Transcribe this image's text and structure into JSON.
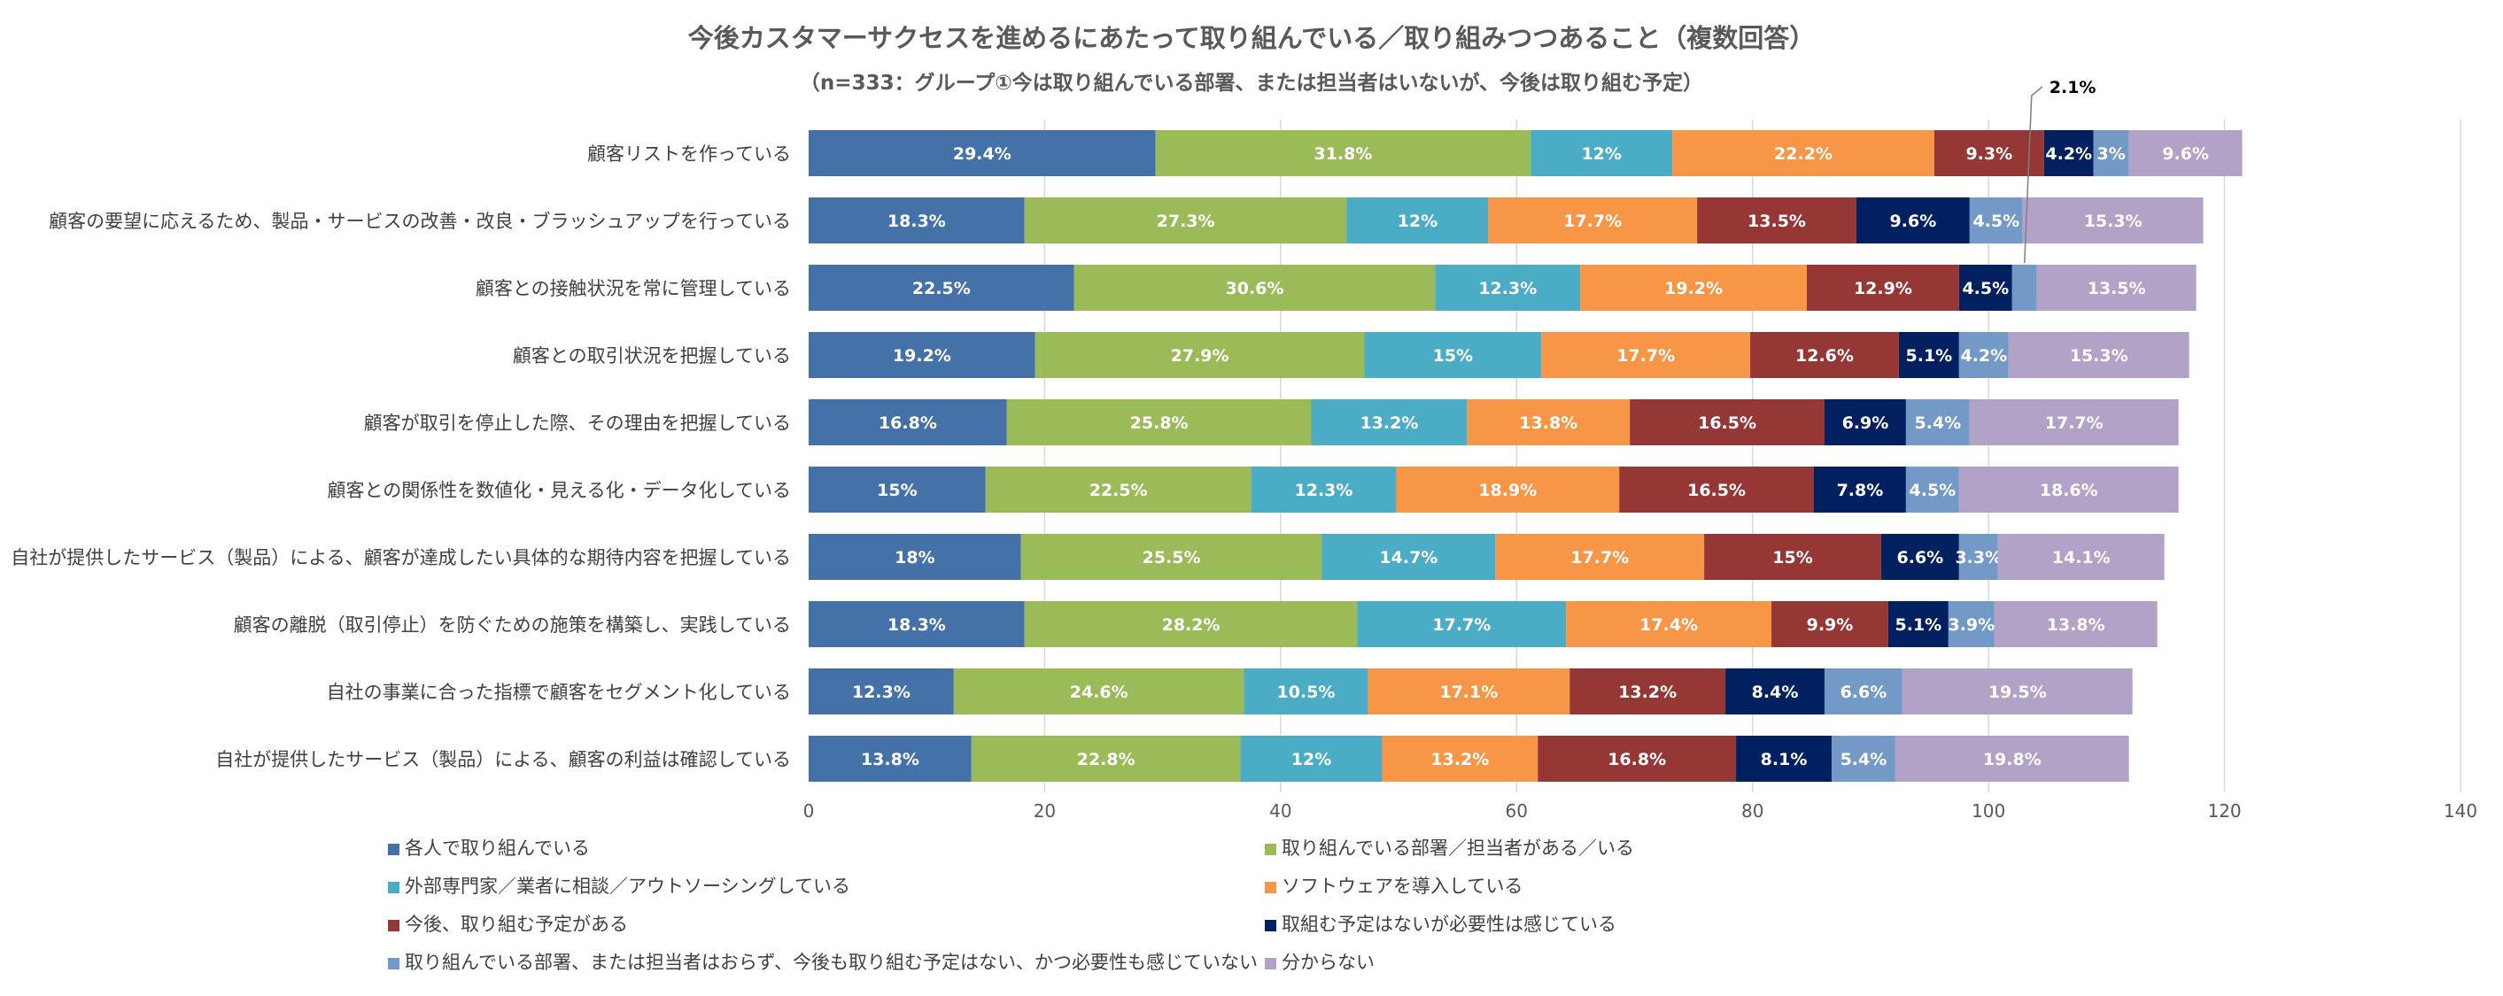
{
  "title": "今後カスタマーサクセスを進めるにあたって取り組んでいる／取り組みつつあること（複数回答）",
  "subtitle": "（n=333：グループ①今は取り組んでいる部署、または担当者はいないが、今後は取り組む予定）",
  "chart_data": {
    "type": "bar",
    "orientation": "horizontal",
    "stacked": true,
    "xlim": [
      0,
      140
    ],
    "x_ticks": [
      "0",
      "20",
      "40",
      "60",
      "80",
      "100",
      "120",
      "140"
    ],
    "grid": true,
    "legend_position": "bottom",
    "categories": [
      "顧客リストを作っている",
      "顧客の要望に応えるため、製品・サービスの改善・改良・ブラッシュアップを行っている",
      "顧客との接触状況を常に管理している",
      "顧客との取引状況を把握している",
      "顧客が取引を停止した際、その理由を把握している",
      "顧客との関係性を数値化・見える化・データ化している",
      "自社が提供したサービス（製品）による、顧客が達成したい具体的な期待内容を把握している",
      "顧客の離脱（取引停止）を防ぐための施策を構築し、実践している",
      "自社の事業に合った指標で顧客をセグメント化している",
      "自社が提供したサービス（製品）による、顧客の利益は確認している"
    ],
    "series": [
      {
        "name": "各人で取り組んでいる",
        "color": "#4472a8",
        "values": [
          29.4,
          18.3,
          22.5,
          19.2,
          16.8,
          15,
          18,
          18.3,
          12.3,
          13.8
        ]
      },
      {
        "name": "取り組んでいる部署／担当者がある／いる",
        "color": "#9bbb59",
        "values": [
          31.8,
          27.3,
          30.6,
          27.9,
          25.8,
          22.5,
          25.5,
          28.2,
          24.6,
          22.8
        ]
      },
      {
        "name": "外部専門家／業者に相談／アウトソーシングしている",
        "color": "#4bacc6",
        "values": [
          12,
          12,
          12.3,
          15,
          13.2,
          12.3,
          14.7,
          17.7,
          10.5,
          12
        ]
      },
      {
        "name": "ソフトウェアを導入している",
        "color": "#f79646",
        "values": [
          22.2,
          17.7,
          19.2,
          17.7,
          13.8,
          18.9,
          17.7,
          17.4,
          17.1,
          13.2
        ]
      },
      {
        "name": "今後、取り組む予定がある",
        "color": "#953735",
        "values": [
          9.3,
          13.5,
          12.9,
          12.6,
          16.5,
          16.5,
          15,
          9.9,
          13.2,
          16.8
        ]
      },
      {
        "name": "取組む予定はないが必要性は感じている",
        "color": "#002060",
        "values": [
          4.2,
          9.6,
          4.5,
          5.1,
          6.9,
          7.8,
          6.6,
          5.1,
          8.4,
          8.1
        ]
      },
      {
        "name": "取り組んでいる部署、または担当者はおらず、今後も取り組む予定はない、かつ必要性も感じていない",
        "color": "#7399c6",
        "values": [
          3,
          4.5,
          2.1,
          4.2,
          5.4,
          4.5,
          3.3,
          3.9,
          6.6,
          5.4
        ]
      },
      {
        "name": "分からない",
        "color": "#b3a2c7",
        "values": [
          9.6,
          15.3,
          13.5,
          15.3,
          17.7,
          18.6,
          14.1,
          13.8,
          19.5,
          19.8
        ]
      }
    ],
    "annotations": [
      {
        "text": "2.1%",
        "category_index": 2,
        "series_index": 6
      }
    ]
  }
}
